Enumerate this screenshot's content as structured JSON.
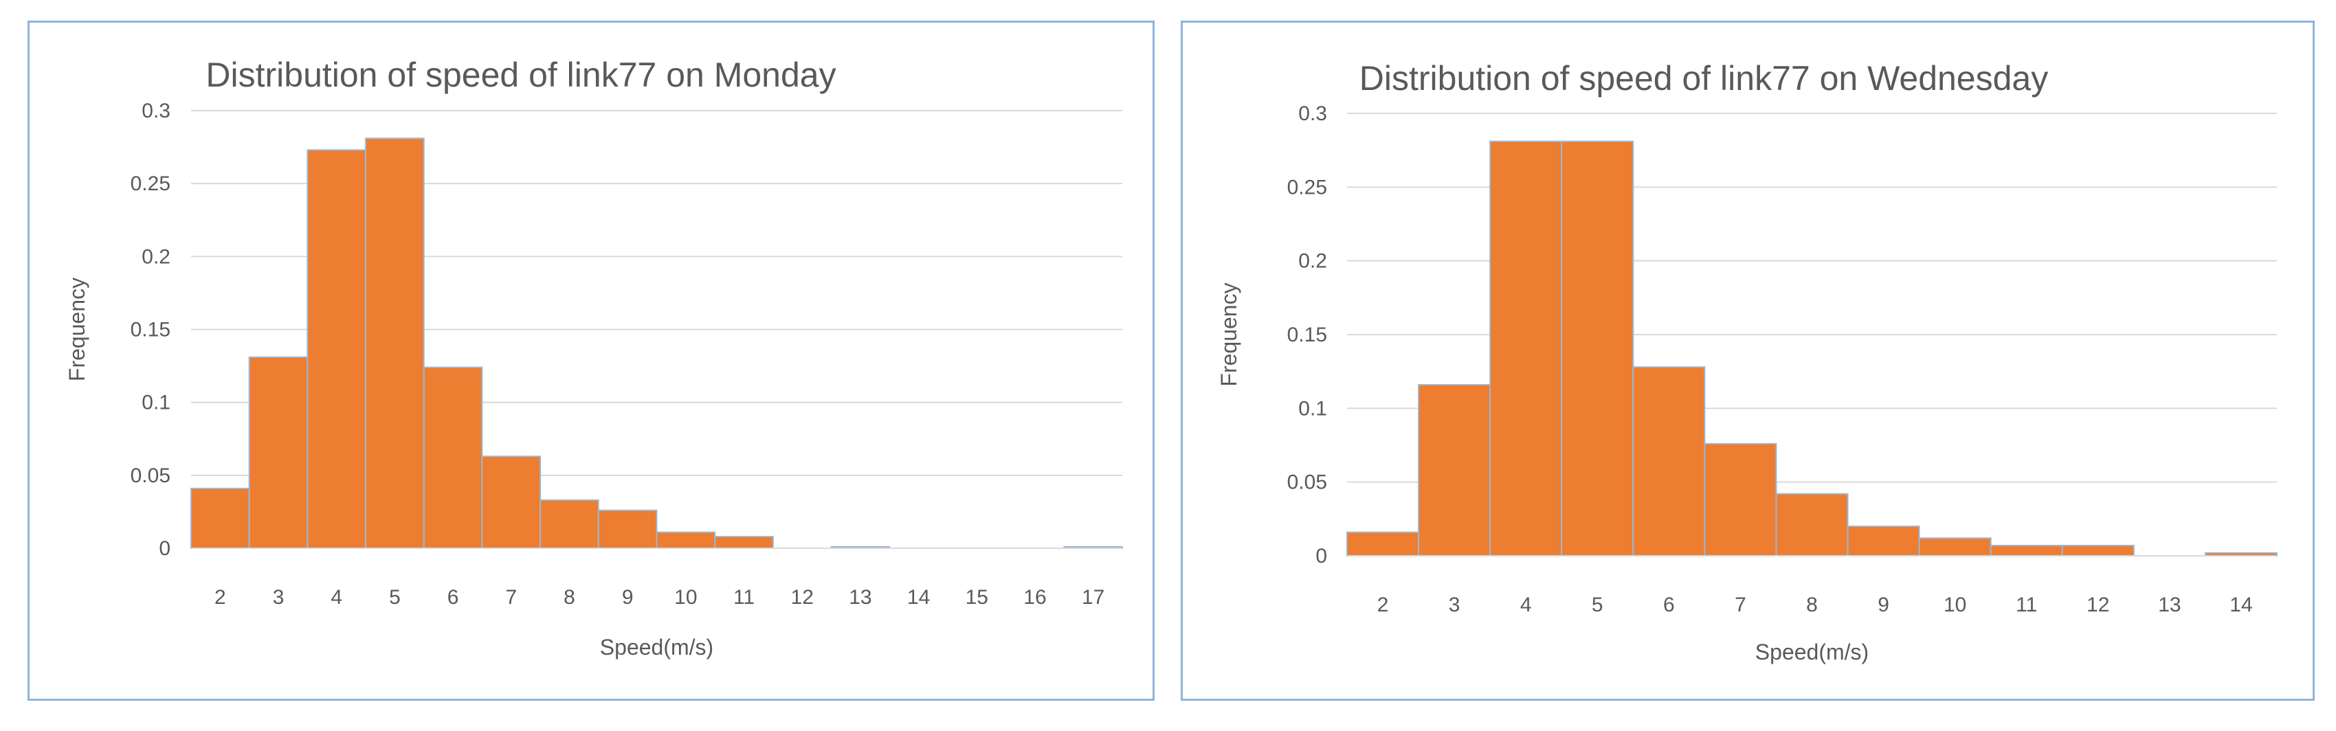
{
  "colors": {
    "bar_fill": "#ed7d31",
    "bar_stroke": "#9bb8d6",
    "grid": "#d9d9d9",
    "frame": "#8fb4dc",
    "text": "#595959"
  },
  "chart_data": [
    {
      "type": "bar",
      "title": "Distribution of speed of link77 on Monday",
      "xlabel": "Speed(m/s)",
      "ylabel": "Frequency",
      "categories": [
        "2",
        "3",
        "4",
        "5",
        "6",
        "7",
        "8",
        "9",
        "10",
        "11",
        "12",
        "13",
        "14",
        "15",
        "16",
        "17"
      ],
      "values": [
        0.041,
        0.131,
        0.273,
        0.281,
        0.124,
        0.063,
        0.033,
        0.026,
        0.011,
        0.008,
        0.0,
        0.001,
        0.0,
        0.0,
        0.0,
        0.001
      ],
      "yticks": [
        "0",
        "0.05",
        "0.1",
        "0.15",
        "0.2",
        "0.25",
        "0.3"
      ],
      "ylim": [
        0,
        0.3
      ],
      "grid": true,
      "legend": "none"
    },
    {
      "type": "bar",
      "title": "Distribution of speed of link77 on Wednesday",
      "xlabel": "Speed(m/s)",
      "ylabel": "Frequency",
      "categories": [
        "2",
        "3",
        "4",
        "5",
        "6",
        "7",
        "8",
        "9",
        "10",
        "11",
        "12",
        "13",
        "14"
      ],
      "values": [
        0.016,
        0.116,
        0.281,
        0.281,
        0.128,
        0.076,
        0.042,
        0.02,
        0.012,
        0.007,
        0.007,
        0.0,
        0.002
      ],
      "yticks": [
        "0",
        "0.05",
        "0.1",
        "0.15",
        "0.2",
        "0.25",
        "0.3"
      ],
      "ylim": [
        0,
        0.3
      ],
      "grid": true,
      "legend": "none"
    }
  ]
}
